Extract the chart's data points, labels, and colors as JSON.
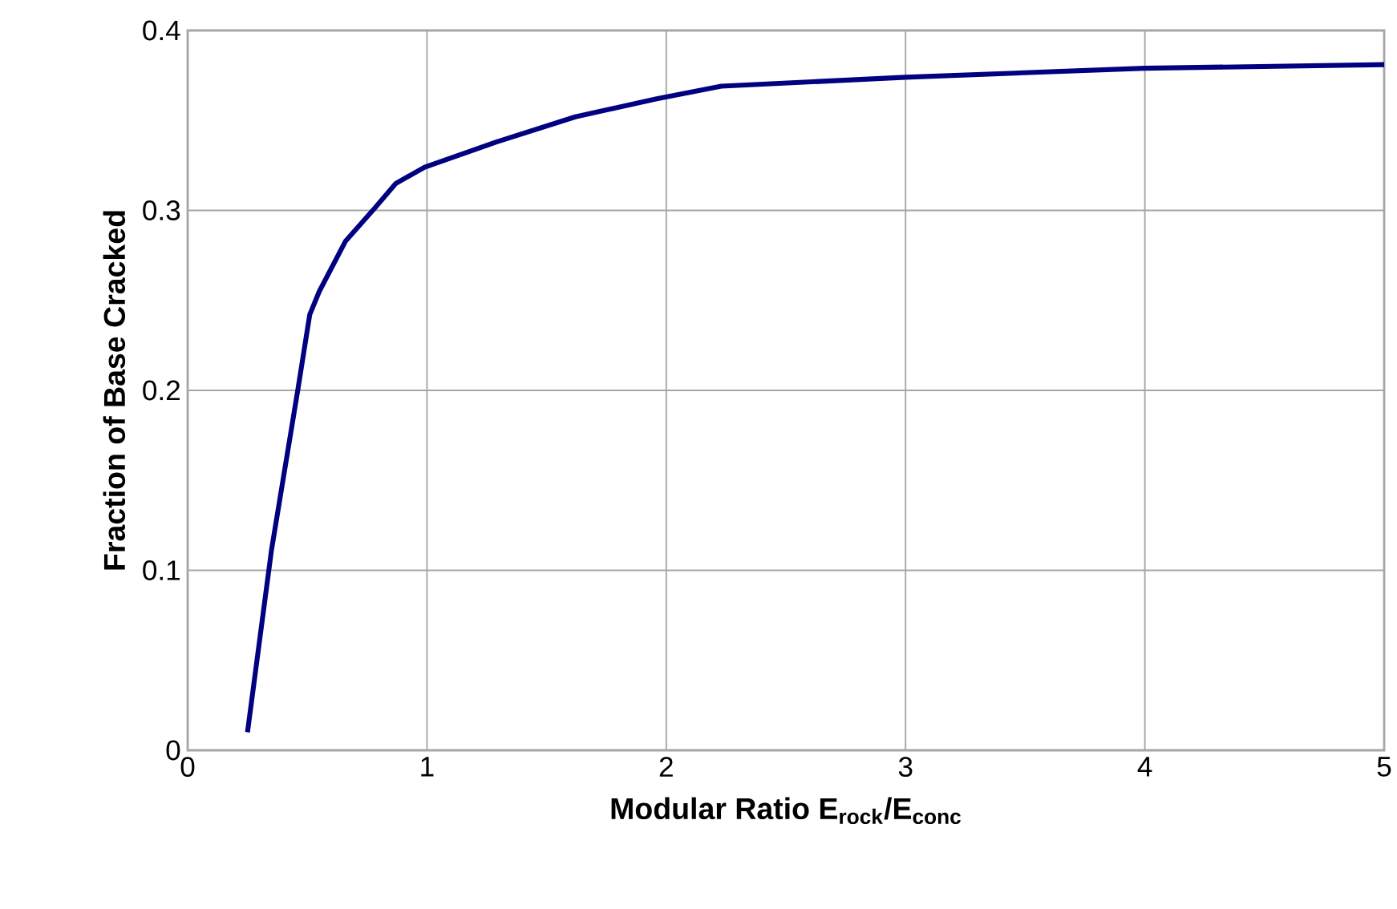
{
  "chart_data": {
    "type": "line",
    "xlabel": "Modular Ratio E$_{rock}$/E$_{conc}$",
    "ylabel": "Fraction of Base Cracked",
    "x": [
      0.25,
      0.35,
      0.46,
      0.51,
      0.55,
      0.66,
      0.78,
      0.87,
      0.99,
      1.29,
      1.62,
      1.96,
      2.23,
      3.0,
      4.0,
      5.0
    ],
    "values": [
      0.01,
      0.111,
      0.2,
      0.242,
      0.255,
      0.283,
      0.301,
      0.315,
      0.324,
      0.338,
      0.352,
      0.362,
      0.369,
      0.374,
      0.379,
      0.381
    ],
    "color": "#000080",
    "xlim": [
      0,
      5
    ],
    "ylim": [
      0,
      0.4
    ],
    "xticks": [
      0,
      1,
      2,
      3,
      4,
      5
    ],
    "yticks": [
      0,
      0.1,
      0.2,
      0.3,
      0.4
    ],
    "grid": true,
    "marker": "none",
    "line_style": "solid"
  }
}
